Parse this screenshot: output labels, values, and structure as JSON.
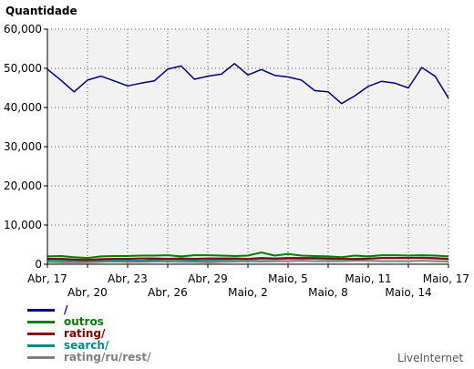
{
  "chart_data": {
    "type": "line",
    "title": "",
    "ylabel": "Quantidade",
    "xlabel": "",
    "ylim": [
      0,
      60000
    ],
    "yticks": [
      0,
      10000,
      20000,
      30000,
      40000,
      50000,
      60000
    ],
    "ytick_labels": [
      "0",
      "10,000",
      "20,000",
      "30,000",
      "40,000",
      "50,000",
      "60,000"
    ],
    "x": [
      "Abr, 17",
      "Abr, 18",
      "Abr, 19",
      "Abr, 20",
      "Abr, 21",
      "Abr, 22",
      "Abr, 23",
      "Abr, 24",
      "Abr, 25",
      "Abr, 26",
      "Abr, 27",
      "Abr, 28",
      "Abr, 29",
      "Abr, 30",
      "Maio, 1",
      "Maio, 2",
      "Maio, 3",
      "Maio, 4",
      "Maio, 5",
      "Maio, 6",
      "Maio, 7",
      "Maio, 8",
      "Maio, 9",
      "Maio, 10",
      "Maio, 11",
      "Maio, 12",
      "Maio, 13",
      "Maio, 14",
      "Maio, 15",
      "Maio, 16",
      "Maio, 17"
    ],
    "xtick_labels": [
      {
        "label": "Abr, 17",
        "index": 0
      },
      {
        "label": "Abr, 20",
        "index": 3
      },
      {
        "label": "Abr, 23",
        "index": 6
      },
      {
        "label": "Abr, 26",
        "index": 9
      },
      {
        "label": "Abr, 29",
        "index": 12
      },
      {
        "label": "Maio, 2",
        "index": 15
      },
      {
        "label": "Maio, 5",
        "index": 18
      },
      {
        "label": "Maio, 8",
        "index": 21
      },
      {
        "label": "Maio, 11",
        "index": 24
      },
      {
        "label": "Maio, 14",
        "index": 27
      },
      {
        "label": "Maio, 17",
        "index": 30
      }
    ],
    "grid": true,
    "legend_position": "bottom-left",
    "series": [
      {
        "name": "/",
        "color": "#000080",
        "values": [
          49800,
          47000,
          44000,
          47000,
          48000,
          46800,
          45500,
          46200,
          46800,
          49800,
          50600,
          47200,
          48000,
          48500,
          51200,
          48300,
          49700,
          48200,
          47800,
          47000,
          44300,
          44000,
          41000,
          43000,
          45400,
          46700,
          46200,
          45000,
          50200,
          48000,
          42400
        ]
      },
      {
        "name": "outros",
        "color": "#008000",
        "values": [
          2000,
          2100,
          1800,
          1600,
          2000,
          2100,
          2100,
          2200,
          2200,
          2300,
          2000,
          2300,
          2300,
          2200,
          2100,
          2200,
          3000,
          2200,
          2600,
          2200,
          2100,
          2000,
          1800,
          2200,
          2000,
          2300,
          2300,
          2200,
          2300,
          2200,
          2000
        ]
      },
      {
        "name": "rating/",
        "color": "#8b0000",
        "values": [
          1400,
          1400,
          1200,
          1100,
          1300,
          1400,
          1400,
          1500,
          1500,
          1400,
          1500,
          1400,
          1500,
          1500,
          1500,
          1400,
          1600,
          1500,
          1600,
          1600,
          1600,
          1500,
          1400,
          1300,
          1400,
          1600,
          1600,
          1600,
          1600,
          1500,
          1300
        ]
      },
      {
        "name": "search/",
        "color": "#008b8b",
        "values": [
          1100,
          1000,
          900,
          900,
          1000,
          1100,
          1000,
          900,
          1100,
          1200,
          1100,
          1000,
          1000,
          1100,
          1200,
          1200,
          1300,
          1300,
          1400,
          1400,
          1400,
          1300,
          1300,
          1400,
          1500,
          1600,
          1600,
          1600,
          1700,
          1600,
          1400
        ]
      },
      {
        "name": "rating/ru/rest/",
        "color": "#808080",
        "values": [
          600,
          500,
          500,
          500,
          600,
          700,
          600,
          600,
          700,
          700,
          600,
          600,
          500,
          600,
          700,
          800,
          700,
          800,
          800,
          900,
          800,
          800,
          800,
          900,
          900,
          800,
          800,
          800,
          900,
          800,
          700
        ]
      }
    ]
  },
  "credit": "LiveInternet"
}
